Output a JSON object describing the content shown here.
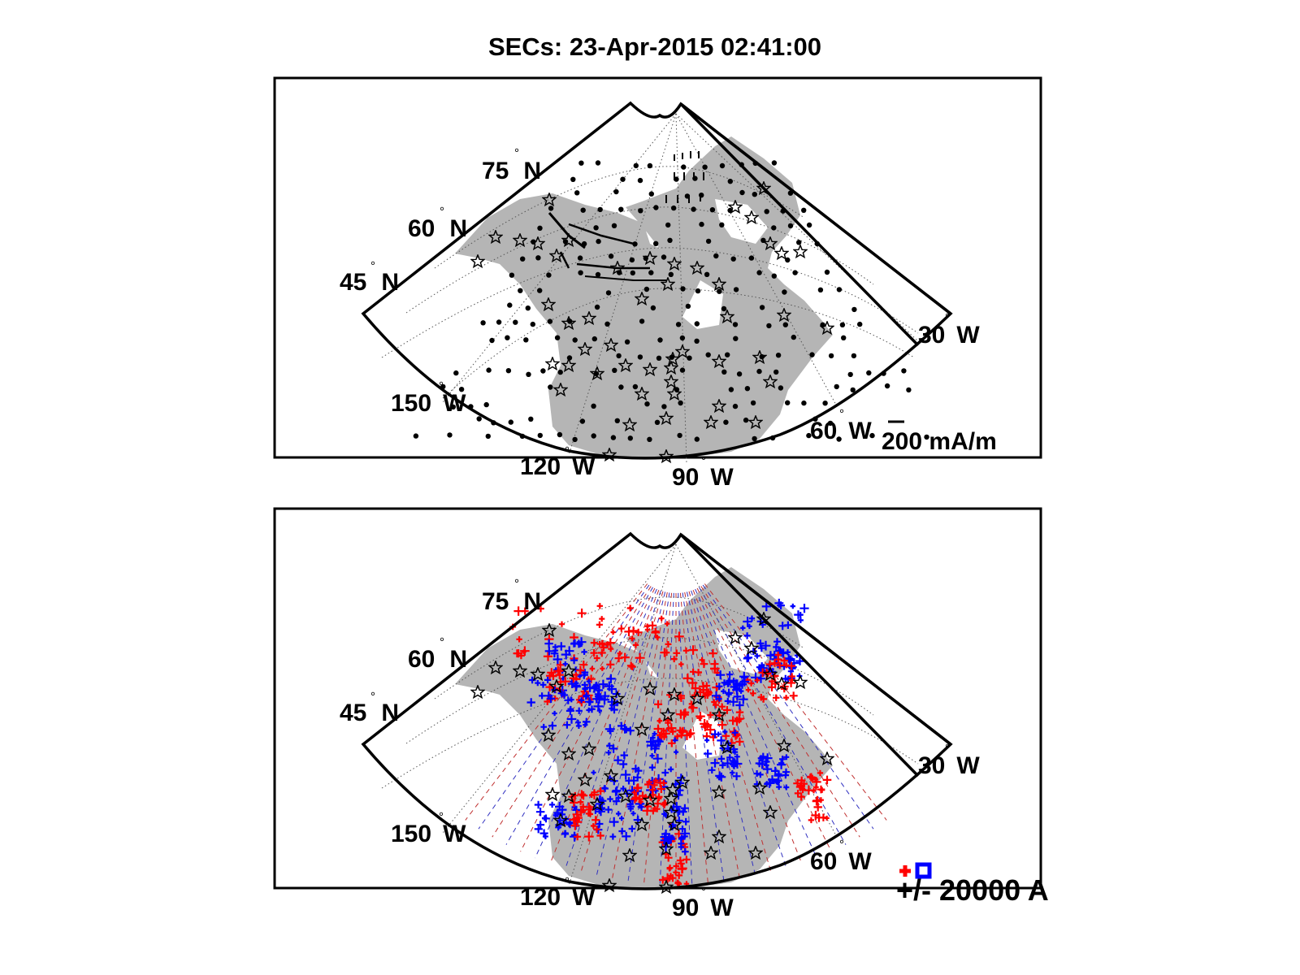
{
  "figure": {
    "title": "SECs: 23-Apr-2015 02:41:00"
  },
  "colors": {
    "land": "#b5b5b5",
    "positive_current": "#ff0000",
    "negative_current": "#0000ff",
    "graticule": "#555555",
    "vectors": "#000000"
  },
  "lat_labels": [
    {
      "text": "75",
      "suffix": "N"
    },
    {
      "text": "60",
      "suffix": "N"
    },
    {
      "text": "45",
      "suffix": "N"
    }
  ],
  "lon_labels": [
    {
      "text": "150",
      "suffix": "W"
    },
    {
      "text": "120",
      "suffix": "W"
    },
    {
      "text": "90",
      "suffix": "W"
    },
    {
      "text": "60",
      "suffix": "W"
    },
    {
      "text": "30",
      "suffix": "W"
    }
  ],
  "panels": [
    {
      "id": "equivalent-currents",
      "scale_label": "200 mA/m"
    },
    {
      "id": "current-amplitudes",
      "scale_label": "+/- 20000 A"
    }
  ]
}
